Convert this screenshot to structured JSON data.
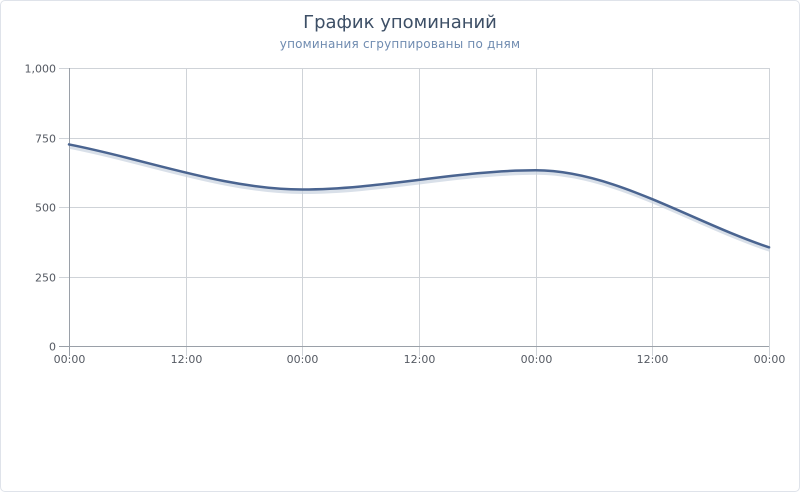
{
  "chart_data": {
    "type": "line",
    "title": "График упоминаний",
    "subtitle": "упоминания сгруппированы по дням",
    "xlabel": "",
    "ylabel": "",
    "ylim": [
      0,
      1000
    ],
    "y_ticks": [
      {
        "value": 0,
        "label": "0"
      },
      {
        "value": 250,
        "label": "250"
      },
      {
        "value": 500,
        "label": "500"
      },
      {
        "value": 750,
        "label": "750"
      },
      {
        "value": 1000,
        "label": "1,000"
      }
    ],
    "xlim": [
      0,
      72
    ],
    "x_ticks": [
      {
        "value": 0,
        "label": "00:00"
      },
      {
        "value": 12,
        "label": "12:00"
      },
      {
        "value": 24,
        "label": "00:00"
      },
      {
        "value": 36,
        "label": "12:00"
      },
      {
        "value": 48,
        "label": "00:00"
      },
      {
        "value": 60,
        "label": "12:00"
      },
      {
        "value": 72,
        "label": "00:00"
      }
    ],
    "grid": true,
    "legend": "none",
    "series": [
      {
        "color": "#4a6490",
        "x": [
          0,
          24,
          48,
          72
        ],
        "values": [
          725,
          563,
          632,
          355
        ]
      }
    ]
  }
}
